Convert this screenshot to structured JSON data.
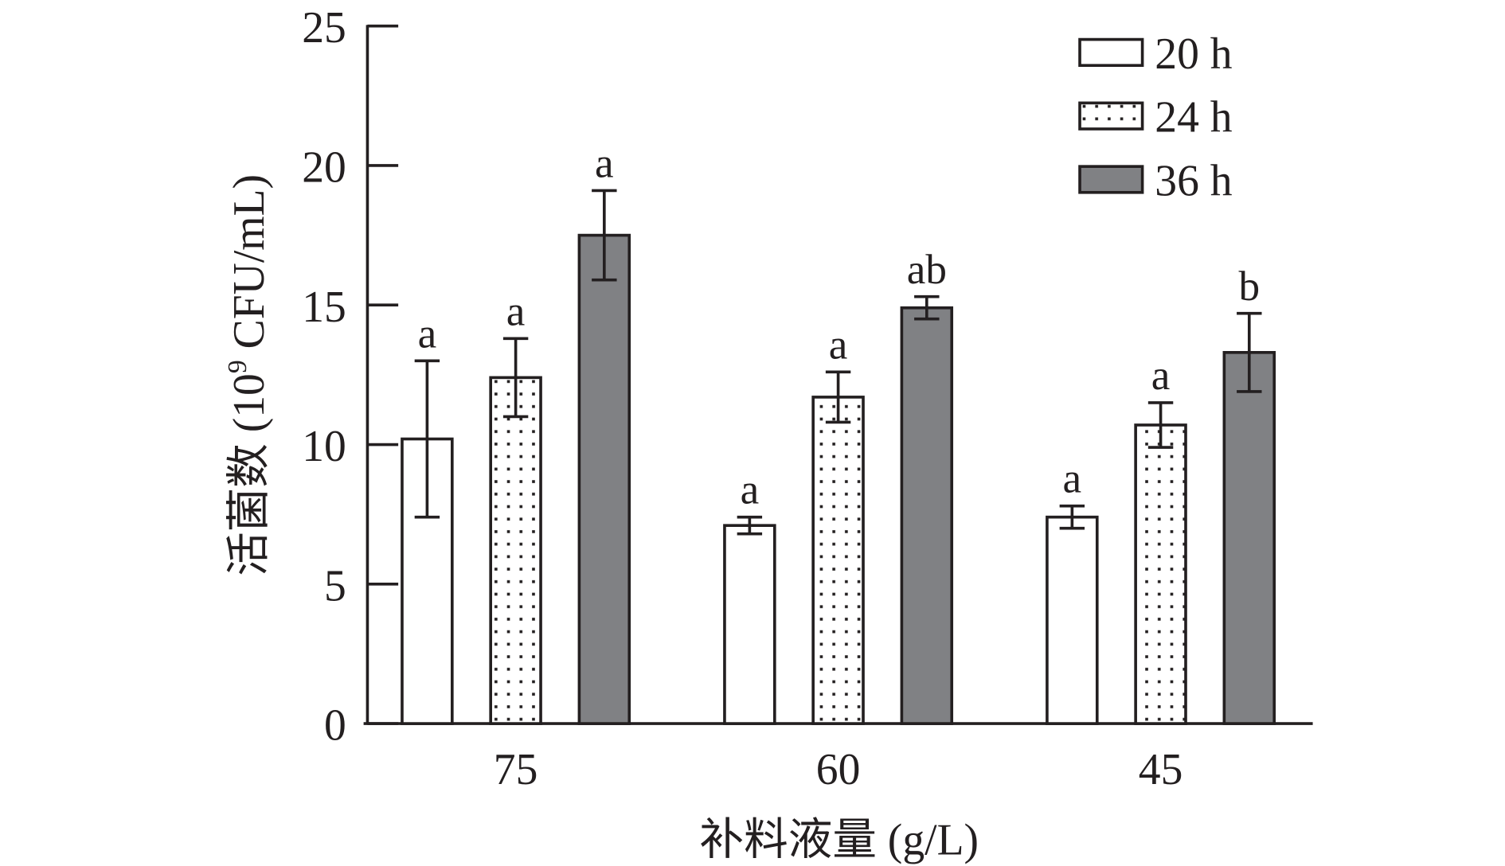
{
  "chart_data": {
    "type": "bar",
    "title": "",
    "xlabel": "补料液量 (g/L)",
    "ylabel_prefix": "活菌数 (10",
    "ylabel_sup": "9",
    "ylabel_suffix": " CFU/mL)",
    "ylim": [
      0,
      25
    ],
    "yticks": [
      "0",
      "5",
      "10",
      "15",
      "20",
      "25"
    ],
    "categories": [
      "75",
      "60",
      "45"
    ],
    "legend_position": "top-right",
    "series": [
      {
        "name": "20 h",
        "pattern": "white",
        "values": [
          10.2,
          7.1,
          7.4
        ],
        "errors": [
          2.8,
          0.3,
          0.4
        ],
        "labels": [
          "a",
          "a",
          "a"
        ]
      },
      {
        "name": "24 h",
        "pattern": "dotted",
        "values": [
          12.4,
          11.7,
          10.7
        ],
        "errors": [
          1.4,
          0.9,
          0.8
        ],
        "labels": [
          "a",
          "a",
          "a"
        ]
      },
      {
        "name": "36 h",
        "pattern": "gray",
        "values": [
          17.5,
          14.9,
          13.3
        ],
        "errors": [
          1.6,
          0.4,
          1.4
        ],
        "labels": [
          "a",
          "ab",
          "b"
        ]
      }
    ],
    "colors": {
      "gray": "#808184",
      "stroke": "#231f20"
    }
  }
}
